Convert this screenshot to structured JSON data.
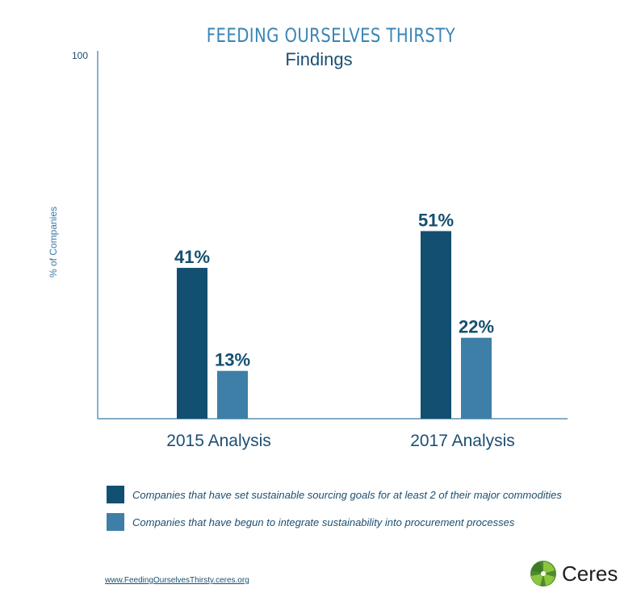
{
  "header": {
    "title": "FEEDING OURSELVES THIRSTY",
    "subtitle": "Findings"
  },
  "colors": {
    "series1": "#134f70",
    "series2": "#3d7fa7",
    "axis": "#3a7aa6",
    "title": "#3a86b5",
    "text": "#1b4f72"
  },
  "chart_data": {
    "type": "bar",
    "categories": [
      "2015 Analysis",
      "2017 Analysis"
    ],
    "series": [
      {
        "name": "Companies that have set sustainable sourcing goals for at least 2 of their major commodities",
        "values": [
          41,
          51
        ]
      },
      {
        "name": "Companies that have begun to integrate sustainability into procurement processes",
        "values": [
          13,
          22
        ]
      }
    ],
    "data_labels": [
      [
        "41%",
        "51%"
      ],
      [
        "13%",
        "22%"
      ]
    ],
    "ylabel": "% of Companies",
    "ytick": "100",
    "ylim": [
      0,
      100
    ],
    "grid": false,
    "legend_position": "bottom"
  },
  "footer": {
    "url": "www.FeedingOurselvesThirsty.ceres.org",
    "logo_text": "Ceres",
    "logo_icon": "ceres-leaf-icon"
  }
}
